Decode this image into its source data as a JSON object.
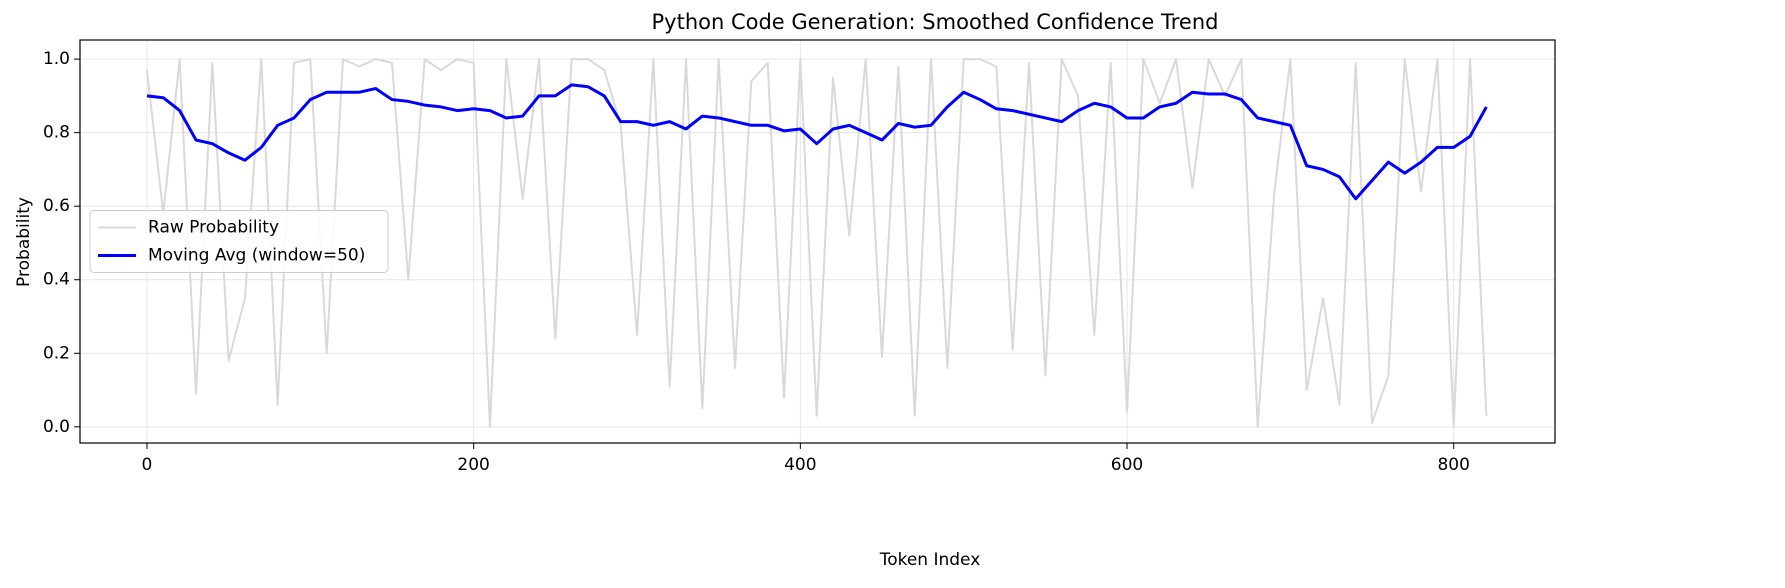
{
  "chart_data": {
    "type": "line",
    "title": "Python Code Generation: Smoothed Confidence Trend",
    "x_label": "Token Index",
    "y_label": "Probability",
    "x": [
      0,
      10,
      20,
      30,
      40,
      50,
      60,
      70,
      80,
      90,
      100,
      110,
      120,
      130,
      140,
      150,
      160,
      170,
      180,
      190,
      200,
      210,
      220,
      230,
      240,
      250,
      260,
      270,
      280,
      290,
      300,
      310,
      320,
      330,
      340,
      350,
      360,
      370,
      380,
      390,
      400,
      410,
      420,
      430,
      440,
      450,
      460,
      470,
      480,
      490,
      500,
      510,
      520,
      530,
      540,
      550,
      560,
      570,
      580,
      590,
      600,
      610,
      620,
      630,
      640,
      650,
      660,
      670,
      680,
      690,
      700,
      710,
      720,
      730,
      740,
      750,
      760,
      770,
      780,
      790,
      800,
      810,
      820
    ],
    "series": [
      {
        "name": "Raw Probability",
        "color": "#d9d9d9",
        "width": 2,
        "values": [
          0.97,
          0.58,
          1.0,
          0.09,
          0.99,
          0.18,
          0.35,
          1.0,
          0.06,
          0.99,
          1.0,
          0.2,
          1.0,
          0.98,
          1.0,
          0.99,
          0.4,
          1.0,
          0.97,
          1.0,
          0.99,
          0.0,
          1.0,
          0.62,
          1.0,
          0.24,
          1.0,
          1.0,
          0.97,
          0.82,
          0.25,
          1.0,
          0.11,
          1.0,
          0.05,
          1.0,
          0.16,
          0.94,
          0.99,
          0.08,
          1.0,
          0.03,
          0.95,
          0.52,
          1.0,
          0.19,
          0.98,
          0.03,
          1.0,
          0.16,
          1.0,
          1.0,
          0.98,
          0.21,
          0.99,
          0.14,
          1.0,
          0.9,
          0.25,
          0.99,
          0.04,
          1.0,
          0.88,
          1.0,
          0.65,
          1.0,
          0.9,
          1.0,
          0.0,
          0.63,
          1.0,
          0.1,
          0.35,
          0.06,
          0.99,
          0.01,
          0.14,
          1.0,
          0.64,
          1.0,
          0.0,
          1.0,
          0.03
        ]
      },
      {
        "name": "Moving Avg (window=50)",
        "color": "#0000ff",
        "width": 3,
        "values": [
          0.9,
          0.895,
          0.86,
          0.78,
          0.77,
          0.745,
          0.725,
          0.76,
          0.82,
          0.84,
          0.89,
          0.91,
          0.91,
          0.91,
          0.92,
          0.89,
          0.885,
          0.875,
          0.87,
          0.86,
          0.865,
          0.86,
          0.84,
          0.845,
          0.9,
          0.9,
          0.93,
          0.925,
          0.9,
          0.83,
          0.83,
          0.82,
          0.83,
          0.81,
          0.845,
          0.84,
          0.83,
          0.82,
          0.82,
          0.805,
          0.81,
          0.77,
          0.81,
          0.82,
          0.8,
          0.78,
          0.825,
          0.815,
          0.82,
          0.87,
          0.91,
          0.89,
          0.865,
          0.86,
          0.85,
          0.84,
          0.83,
          0.86,
          0.88,
          0.87,
          0.84,
          0.84,
          0.87,
          0.88,
          0.91,
          0.905,
          0.905,
          0.89,
          0.84,
          0.83,
          0.82,
          0.71,
          0.7,
          0.68,
          0.62,
          0.67,
          0.72,
          0.69,
          0.72,
          0.76,
          0.76,
          0.79,
          0.87
        ]
      }
    ],
    "xlim": [
      -41,
      862
    ],
    "ylim": [
      -0.044,
      1.052
    ],
    "xticks": [
      0,
      200,
      400,
      600,
      800
    ],
    "yticks": [
      {
        "value": 0,
        "label": "0.0"
      },
      0.2,
      0.4,
      0.6,
      0.8,
      {
        "value": 1,
        "label": "1.0"
      }
    ],
    "grid": true,
    "legend": "center left"
  }
}
